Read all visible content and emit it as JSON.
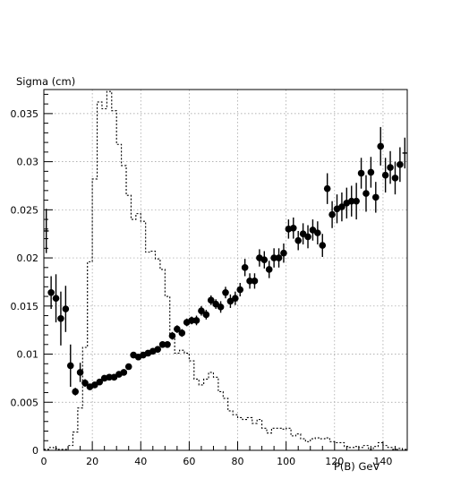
{
  "chart_data": {
    "type": "scatter",
    "title": "",
    "ylabel": "Sigma (cm)",
    "xlabel": "P(B) GeV",
    "xlim": [
      0,
      150
    ],
    "ylim": [
      0,
      0.0375
    ],
    "grid": true,
    "x_ticks": [
      "0",
      "20",
      "40",
      "60",
      "80",
      "100",
      "120",
      "140"
    ],
    "y_ticks": [
      "0",
      "0.005",
      "0.01",
      "0.015",
      "0.02",
      "0.025",
      "0.03",
      "0.035"
    ],
    "x_tick_values": [
      0,
      20,
      40,
      60,
      80,
      100,
      120,
      140
    ],
    "y_tick_values": [
      0,
      0.005,
      0.01,
      0.015,
      0.02,
      0.025,
      0.03,
      0.035
    ],
    "series": [
      {
        "style": "points-with-error-bars",
        "x": [
          1,
          3,
          5,
          7,
          9,
          11,
          13,
          15,
          17,
          19,
          21,
          23,
          25,
          27,
          29,
          31,
          33,
          35,
          37,
          39,
          41,
          43,
          45,
          47,
          49,
          51,
          53,
          55,
          57,
          59,
          61,
          63,
          65,
          67,
          69,
          71,
          73,
          75,
          77,
          79,
          81,
          83,
          85,
          87,
          89,
          91,
          93,
          95,
          97,
          99,
          101,
          103,
          105,
          107,
          109,
          111,
          113,
          115,
          117,
          119,
          121,
          123,
          125,
          127,
          129,
          131,
          133,
          135,
          137,
          139,
          141,
          143,
          145,
          147,
          149
        ],
        "y": [
          0.0228,
          0.0164,
          0.0158,
          0.0137,
          0.0147,
          0.0088,
          0.0061,
          0.0081,
          0.007,
          0.0066,
          0.0068,
          0.0071,
          0.0075,
          0.0076,
          0.0076,
          0.0079,
          0.0081,
          0.0087,
          0.0099,
          0.0097,
          0.0099,
          0.0101,
          0.0103,
          0.0105,
          0.011,
          0.011,
          0.0119,
          0.0126,
          0.0122,
          0.0133,
          0.0135,
          0.0135,
          0.0145,
          0.0141,
          0.0156,
          0.0152,
          0.0149,
          0.0164,
          0.0155,
          0.0158,
          0.0167,
          0.019,
          0.0176,
          0.0176,
          0.02,
          0.0198,
          0.0188,
          0.02,
          0.02,
          0.0205,
          0.023,
          0.0231,
          0.0218,
          0.0225,
          0.0222,
          0.0229,
          0.0226,
          0.0213,
          0.0272,
          0.0245,
          0.0251,
          0.0253,
          0.0257,
          0.0259,
          0.0259,
          0.0288,
          0.0267,
          0.0289,
          0.0263,
          0.0316,
          0.0286,
          0.0294,
          0.0283,
          0.0297,
          0.0309
        ],
        "err": [
          0.0023,
          0.0017,
          0.0025,
          0.0028,
          0.0024,
          0.0022,
          0.0004,
          0.001,
          0.0004,
          0.0003,
          0.0003,
          0.0003,
          0.0003,
          0.0003,
          0.0003,
          0.0003,
          0.0003,
          0.0003,
          0.0003,
          0.0003,
          0.0003,
          0.0003,
          0.0003,
          0.0003,
          0.0003,
          0.0003,
          0.0004,
          0.0004,
          0.0004,
          0.0004,
          0.0004,
          0.0005,
          0.0005,
          0.0005,
          0.0005,
          0.0005,
          0.0006,
          0.0006,
          0.0007,
          0.0007,
          0.0007,
          0.0009,
          0.0008,
          0.0008,
          0.0009,
          0.0009,
          0.0009,
          0.001,
          0.001,
          0.001,
          0.001,
          0.0011,
          0.001,
          0.0011,
          0.0012,
          0.0011,
          0.0012,
          0.0012,
          0.0016,
          0.0014,
          0.0015,
          0.0015,
          0.0016,
          0.0016,
          0.0019,
          0.0016,
          0.0019,
          0.0016,
          0.0016,
          0.002,
          0.0018,
          0.0017,
          0.0017,
          0.0018,
          0.0016
        ]
      },
      {
        "style": "dashed-histogram",
        "bin_width": 2,
        "x": [
          1,
          3,
          5,
          7,
          9,
          11,
          13,
          15,
          17,
          19,
          21,
          23,
          25,
          27,
          29,
          31,
          33,
          35,
          37,
          39,
          41,
          43,
          45,
          47,
          49,
          51,
          53,
          55,
          57,
          59,
          61,
          63,
          65,
          67,
          69,
          71,
          73,
          75,
          77,
          79,
          81,
          83,
          85,
          87,
          89,
          91,
          93,
          95,
          97,
          99,
          101,
          103,
          105,
          107,
          109,
          111,
          113,
          115,
          117,
          119,
          121,
          123,
          125,
          127,
          129,
          131,
          133,
          135,
          137,
          139,
          141,
          143,
          145,
          147,
          149
        ],
        "y": [
          0.0001,
          0.0003,
          0.0002,
          0.0001,
          0.0001,
          0.0005,
          0.0019,
          0.0044,
          0.0107,
          0.0196,
          0.0282,
          0.0362,
          0.0355,
          0.0373,
          0.0353,
          0.0318,
          0.0296,
          0.0265,
          0.024,
          0.0246,
          0.0238,
          0.0206,
          0.0207,
          0.0199,
          0.0188,
          0.016,
          0.012,
          0.0101,
          0.0104,
          0.0101,
          0.0093,
          0.0074,
          0.0068,
          0.0074,
          0.0081,
          0.0076,
          0.0061,
          0.0054,
          0.0041,
          0.0037,
          0.0034,
          0.0032,
          0.0034,
          0.0028,
          0.0032,
          0.0023,
          0.0018,
          0.0023,
          0.0023,
          0.0022,
          0.0023,
          0.0015,
          0.0017,
          0.0012,
          0.0009,
          0.0012,
          0.0013,
          0.0012,
          0.0013,
          0.0009,
          0.0008,
          0.0008,
          0.0004,
          0.0003,
          0.0004,
          0.0003,
          0.0005,
          0.0001,
          0.0004,
          0.0008,
          0.0005,
          0.0003,
          0.0001,
          0.0002,
          0.0001
        ]
      }
    ]
  }
}
